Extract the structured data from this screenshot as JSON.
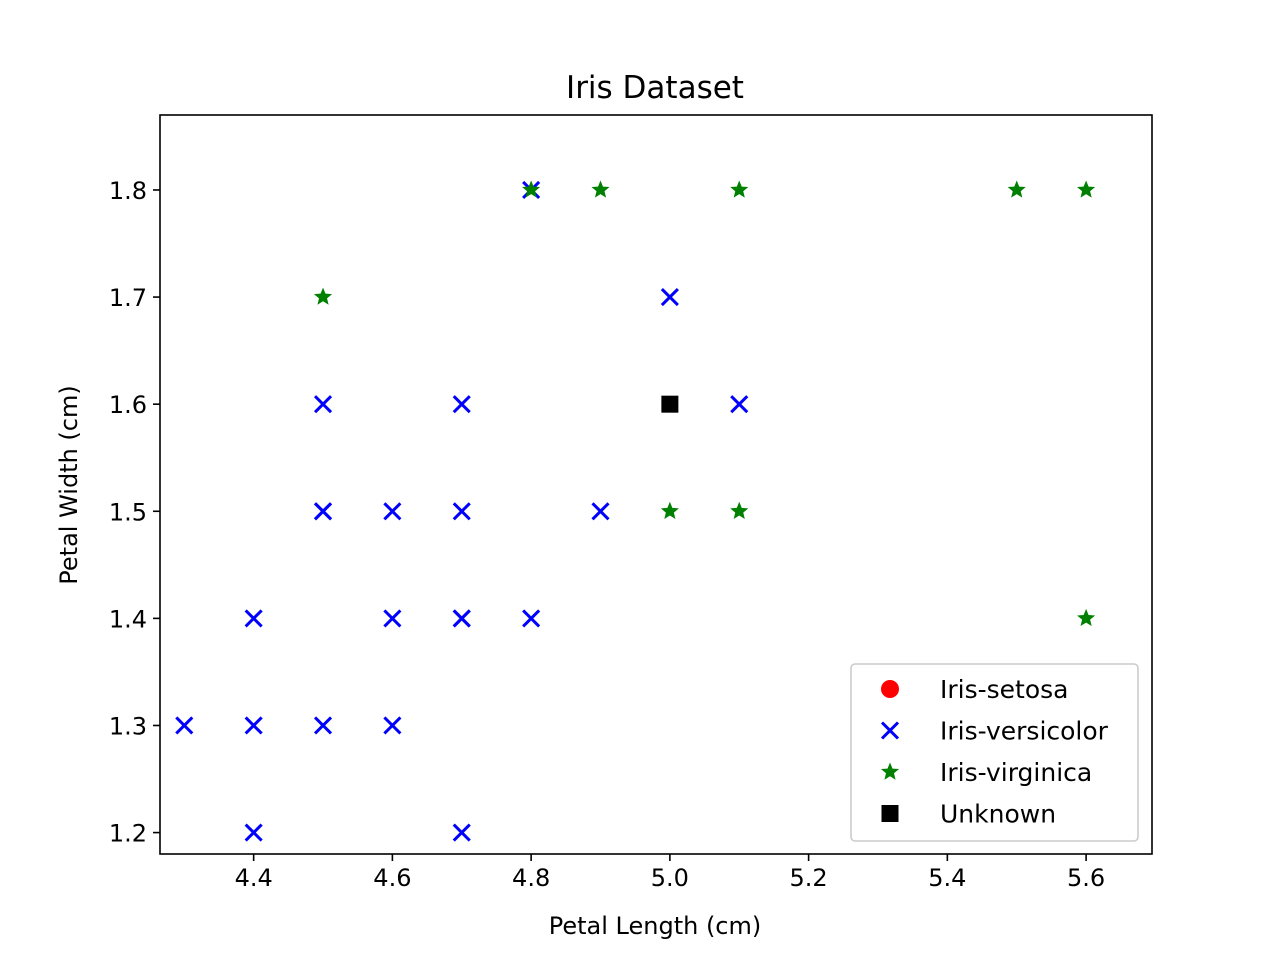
{
  "chart_data": {
    "type": "scatter",
    "title": "Iris Dataset",
    "xlabel": "Petal Length (cm)",
    "ylabel": "Petal Width (cm)",
    "xlim": [
      4.265,
      5.695
    ],
    "ylim": [
      1.18,
      1.87
    ],
    "xticks": [
      4.4,
      4.6,
      4.8,
      5.0,
      5.2,
      5.4,
      5.6
    ],
    "xtick_labels": [
      "4.4",
      "4.6",
      "4.8",
      "5.0",
      "5.2",
      "5.4",
      "5.6"
    ],
    "yticks": [
      1.2,
      1.3,
      1.4,
      1.5,
      1.6,
      1.7,
      1.8
    ],
    "ytick_labels": [
      "1.2",
      "1.3",
      "1.4",
      "1.5",
      "1.6",
      "1.7",
      "1.8"
    ],
    "grid": false,
    "legend_position": "lower-right",
    "series": [
      {
        "name": "Iris-setosa",
        "marker": "circle",
        "color": "#ff0000",
        "points": []
      },
      {
        "name": "Iris-versicolor",
        "marker": "x",
        "color": "#0000ff",
        "points": [
          [
            4.3,
            1.3
          ],
          [
            4.4,
            1.2
          ],
          [
            4.4,
            1.3
          ],
          [
            4.4,
            1.4
          ],
          [
            4.5,
            1.3
          ],
          [
            4.5,
            1.5
          ],
          [
            4.5,
            1.5
          ],
          [
            4.5,
            1.6
          ],
          [
            4.6,
            1.3
          ],
          [
            4.6,
            1.4
          ],
          [
            4.6,
            1.5
          ],
          [
            4.7,
            1.2
          ],
          [
            4.7,
            1.4
          ],
          [
            4.7,
            1.4
          ],
          [
            4.7,
            1.5
          ],
          [
            4.7,
            1.6
          ],
          [
            4.8,
            1.4
          ],
          [
            4.8,
            1.8
          ],
          [
            4.9,
            1.5
          ],
          [
            5.0,
            1.7
          ],
          [
            5.1,
            1.6
          ]
        ]
      },
      {
        "name": "Iris-virginica",
        "marker": "star",
        "color": "#008000",
        "points": [
          [
            4.5,
            1.7
          ],
          [
            4.8,
            1.8
          ],
          [
            4.9,
            1.8
          ],
          [
            5.0,
            1.5
          ],
          [
            5.1,
            1.5
          ],
          [
            5.1,
            1.8
          ],
          [
            5.5,
            1.8
          ],
          [
            5.6,
            1.8
          ],
          [
            5.6,
            1.4
          ]
        ]
      },
      {
        "name": "Unknown",
        "marker": "square",
        "color": "#000000",
        "points": [
          [
            5.0,
            1.6
          ]
        ]
      }
    ]
  }
}
